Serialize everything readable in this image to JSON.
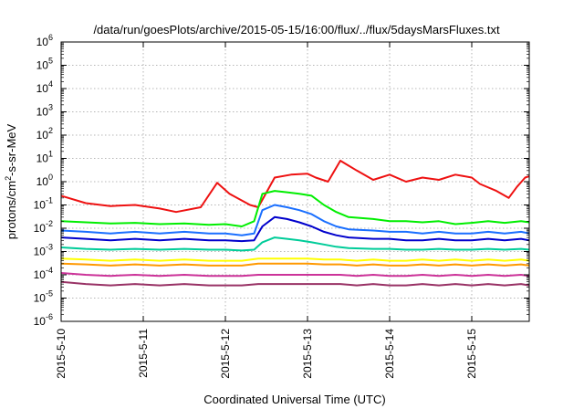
{
  "chart_data": {
    "type": "line",
    "title": "/data/run/goesPlots/archive/2015-05-15/16:00/flux/../flux/5daysMarsFluxes.txt",
    "xlabel": "Coordinated Universal Time (UTC)",
    "ylabel": {
      "prefix": "protons/cm",
      "superscript": "2",
      "suffix": "-s-sr-MeV"
    },
    "yscale": "log",
    "ylim_exponents": [
      -6,
      6
    ],
    "y_tick_labels": [
      {
        "base": "10",
        "exp": "-6"
      },
      {
        "base": "10",
        "exp": "-5"
      },
      {
        "base": "10",
        "exp": "-4"
      },
      {
        "base": "10",
        "exp": "-3"
      },
      {
        "base": "10",
        "exp": "-2"
      },
      {
        "base": "10",
        "exp": "-1"
      },
      {
        "base": "10",
        "exp": "0"
      },
      {
        "base": "10",
        "exp": "1"
      },
      {
        "base": "10",
        "exp": "2"
      },
      {
        "base": "10",
        "exp": "3"
      },
      {
        "base": "10",
        "exp": "4"
      },
      {
        "base": "10",
        "exp": "5"
      },
      {
        "base": "10",
        "exp": "6"
      }
    ],
    "x_tick_labels": [
      "2015-5-10",
      "2015-5-11",
      "2015-5-12",
      "2015-5-13",
      "2015-5-14",
      "2015-5-15"
    ],
    "x_range_days": [
      0,
      5.7
    ],
    "grid": true,
    "series": [
      {
        "color": "#ee1111",
        "x": [
          0,
          0.3,
          0.6,
          0.9,
          1.2,
          1.4,
          1.7,
          1.9,
          2.05,
          2.3,
          2.4,
          2.6,
          2.8,
          3.0,
          3.1,
          3.25,
          3.4,
          3.6,
          3.8,
          4.0,
          4.2,
          4.4,
          4.6,
          4.8,
          5.0,
          5.1,
          5.3,
          5.45,
          5.55,
          5.65,
          5.7
        ],
        "y": [
          0.25,
          0.12,
          0.09,
          0.1,
          0.07,
          0.05,
          0.08,
          0.9,
          0.3,
          0.1,
          0.08,
          1.5,
          2.0,
          2.2,
          1.5,
          1.0,
          8.0,
          3.0,
          1.2,
          2.0,
          1.0,
          1.5,
          1.2,
          2.0,
          1.5,
          0.8,
          0.4,
          0.2,
          0.6,
          1.5,
          1.7
        ]
      },
      {
        "color": "#00ee00",
        "x": [
          0,
          0.3,
          0.6,
          0.9,
          1.2,
          1.5,
          1.8,
          2.0,
          2.2,
          2.35,
          2.45,
          2.6,
          2.75,
          2.9,
          3.05,
          3.2,
          3.35,
          3.5,
          3.8,
          4.0,
          4.2,
          4.4,
          4.6,
          4.8,
          5.0,
          5.2,
          5.4,
          5.6,
          5.7
        ],
        "y": [
          0.02,
          0.018,
          0.016,
          0.017,
          0.015,
          0.016,
          0.014,
          0.015,
          0.012,
          0.02,
          0.3,
          0.4,
          0.35,
          0.3,
          0.25,
          0.1,
          0.05,
          0.03,
          0.025,
          0.02,
          0.02,
          0.018,
          0.02,
          0.015,
          0.017,
          0.02,
          0.017,
          0.02,
          0.018
        ]
      },
      {
        "color": "#1a6fff",
        "x": [
          0,
          0.3,
          0.6,
          0.9,
          1.2,
          1.5,
          1.8,
          2.0,
          2.2,
          2.35,
          2.45,
          2.6,
          2.75,
          2.9,
          3.05,
          3.2,
          3.35,
          3.5,
          3.8,
          4.0,
          4.2,
          4.4,
          4.6,
          4.8,
          5.0,
          5.2,
          5.4,
          5.6,
          5.7
        ],
        "y": [
          0.008,
          0.007,
          0.006,
          0.007,
          0.006,
          0.007,
          0.006,
          0.006,
          0.005,
          0.006,
          0.06,
          0.1,
          0.08,
          0.06,
          0.04,
          0.02,
          0.012,
          0.009,
          0.008,
          0.007,
          0.007,
          0.006,
          0.007,
          0.006,
          0.006,
          0.007,
          0.006,
          0.007,
          0.006
        ]
      },
      {
        "color": "#0000cc",
        "x": [
          0,
          0.3,
          0.6,
          0.9,
          1.2,
          1.5,
          1.8,
          2.0,
          2.2,
          2.35,
          2.45,
          2.6,
          2.75,
          2.9,
          3.05,
          3.2,
          3.35,
          3.5,
          3.8,
          4.0,
          4.2,
          4.4,
          4.6,
          4.8,
          5.0,
          5.2,
          5.4,
          5.6,
          5.7
        ],
        "y": [
          0.004,
          0.0035,
          0.003,
          0.0035,
          0.003,
          0.0035,
          0.003,
          0.003,
          0.0028,
          0.003,
          0.012,
          0.03,
          0.025,
          0.018,
          0.012,
          0.007,
          0.005,
          0.004,
          0.0035,
          0.0035,
          0.003,
          0.003,
          0.0035,
          0.003,
          0.003,
          0.0035,
          0.003,
          0.0035,
          0.003
        ]
      },
      {
        "color": "#00cc99",
        "x": [
          0,
          0.3,
          0.6,
          0.9,
          1.2,
          1.5,
          1.8,
          2.0,
          2.2,
          2.35,
          2.45,
          2.6,
          2.75,
          2.9,
          3.05,
          3.2,
          3.35,
          3.5,
          3.8,
          4.0,
          4.2,
          4.4,
          4.6,
          4.8,
          5.0,
          5.2,
          5.4,
          5.6,
          5.7
        ],
        "y": [
          0.0015,
          0.0013,
          0.0012,
          0.0013,
          0.0012,
          0.0013,
          0.0012,
          0.0012,
          0.0011,
          0.0012,
          0.0025,
          0.004,
          0.0035,
          0.003,
          0.0025,
          0.002,
          0.0016,
          0.0014,
          0.0013,
          0.0013,
          0.0012,
          0.0012,
          0.0013,
          0.0012,
          0.0012,
          0.0013,
          0.0012,
          0.0013,
          0.0012
        ]
      },
      {
        "color": "#ffff00",
        "x": [
          0,
          0.3,
          0.6,
          0.9,
          1.2,
          1.5,
          1.8,
          2.0,
          2.2,
          2.4,
          2.6,
          2.8,
          3.0,
          3.2,
          3.4,
          3.6,
          3.8,
          4.0,
          4.2,
          4.4,
          4.6,
          4.8,
          5.0,
          5.2,
          5.4,
          5.6,
          5.7
        ],
        "y": [
          0.0005,
          0.00045,
          0.0004,
          0.00045,
          0.0004,
          0.00045,
          0.0004,
          0.0004,
          0.0004,
          0.0005,
          0.0005,
          0.0005,
          0.0005,
          0.00045,
          0.00045,
          0.0004,
          0.00045,
          0.0004,
          0.0004,
          0.00045,
          0.0004,
          0.00045,
          0.0004,
          0.00045,
          0.0004,
          0.00045,
          0.0004
        ]
      },
      {
        "color": "#ff9900",
        "x": [
          0,
          0.3,
          0.6,
          0.9,
          1.2,
          1.5,
          1.8,
          2.0,
          2.2,
          2.4,
          2.6,
          2.8,
          3.0,
          3.2,
          3.4,
          3.6,
          3.8,
          4.0,
          4.2,
          4.4,
          4.6,
          4.8,
          5.0,
          5.2,
          5.4,
          5.6,
          5.7
        ],
        "y": [
          0.0003,
          0.00028,
          0.00025,
          0.00028,
          0.00025,
          0.00028,
          0.00025,
          0.00025,
          0.00025,
          0.0003,
          0.0003,
          0.0003,
          0.0003,
          0.00028,
          0.00028,
          0.00025,
          0.00028,
          0.00025,
          0.00025,
          0.00028,
          0.00025,
          0.00028,
          0.00025,
          0.00028,
          0.00025,
          0.00028,
          0.00025
        ]
      },
      {
        "color": "#cc3399",
        "x": [
          0,
          0.3,
          0.6,
          0.9,
          1.2,
          1.5,
          1.8,
          2.0,
          2.2,
          2.4,
          2.6,
          2.8,
          3.0,
          3.2,
          3.4,
          3.6,
          3.8,
          4.0,
          4.2,
          4.4,
          4.6,
          4.8,
          5.0,
          5.2,
          5.4,
          5.6,
          5.7
        ],
        "y": [
          0.00012,
          0.0001,
          9e-05,
          0.0001,
          9e-05,
          0.0001,
          9e-05,
          9e-05,
          9e-05,
          0.0001,
          0.0001,
          0.0001,
          0.0001,
          0.0001,
          0.0001,
          9e-05,
          0.0001,
          9e-05,
          9e-05,
          0.0001,
          9e-05,
          0.0001,
          9e-05,
          0.0001,
          9e-05,
          0.0001,
          9e-05
        ]
      },
      {
        "color": "#993366",
        "x": [
          0,
          0.3,
          0.6,
          0.9,
          1.2,
          1.5,
          1.8,
          2.0,
          2.2,
          2.4,
          2.6,
          2.8,
          3.0,
          3.2,
          3.4,
          3.6,
          3.8,
          4.0,
          4.2,
          4.4,
          4.6,
          4.8,
          5.0,
          5.2,
          5.4,
          5.6,
          5.7
        ],
        "y": [
          5e-05,
          4e-05,
          3.5e-05,
          4e-05,
          3.5e-05,
          4e-05,
          3.5e-05,
          3.5e-05,
          3.5e-05,
          4e-05,
          4e-05,
          4e-05,
          4e-05,
          4e-05,
          4e-05,
          3.5e-05,
          4e-05,
          3.5e-05,
          3.5e-05,
          4e-05,
          3.5e-05,
          4e-05,
          3.5e-05,
          4e-05,
          3.5e-05,
          4e-05,
          3.5e-05
        ]
      }
    ]
  }
}
